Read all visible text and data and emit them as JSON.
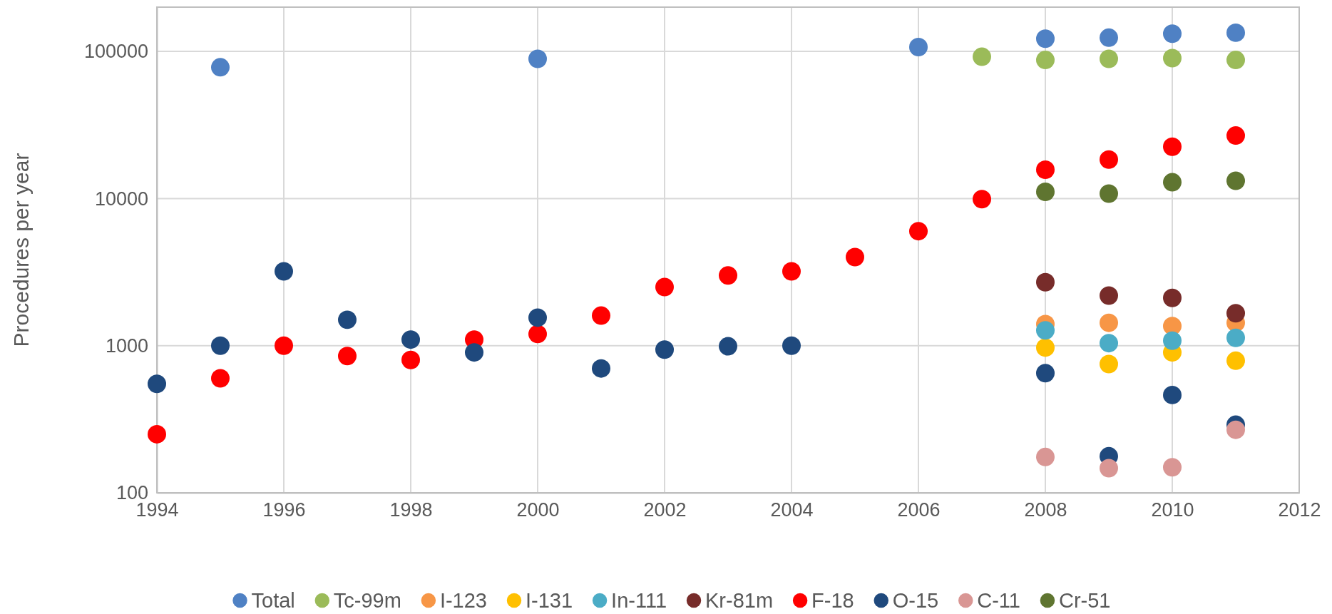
{
  "chart_data": {
    "type": "scatter",
    "ylabel": "Procedures per year",
    "log": "y",
    "grid": true,
    "legend": "bottom",
    "marker": "circle",
    "xlim": [
      1994,
      2012
    ],
    "xticks": [
      1994,
      1996,
      1998,
      2000,
      2002,
      2004,
      2006,
      2008,
      2010,
      2012
    ],
    "ylim": [
      100,
      200000
    ],
    "yticks": [
      100,
      1000,
      10000,
      100000
    ],
    "series": [
      {
        "name": "Total",
        "color": "#4f81c4",
        "x": [
          1995,
          2000,
          2006,
          2008,
          2009,
          2010,
          2011
        ],
        "values": [
          78000,
          89000,
          107000,
          122000,
          124000,
          132000,
          134000
        ]
      },
      {
        "name": "Tc-99m",
        "color": "#9bbb59",
        "x": [
          2007,
          2008,
          2009,
          2010,
          2011
        ],
        "values": [
          92000,
          87500,
          89000,
          90000,
          87500
        ]
      },
      {
        "name": "I-123",
        "color": "#f79646",
        "x": [
          2008,
          2009,
          2010,
          2011
        ],
        "values": [
          1400,
          1430,
          1360,
          1430
        ]
      },
      {
        "name": "I-131",
        "color": "#ffc000",
        "x": [
          2008,
          2009,
          2010,
          2011
        ],
        "values": [
          970,
          750,
          900,
          790
        ]
      },
      {
        "name": "In-111",
        "color": "#4bacc6",
        "x": [
          2008,
          2009,
          2010,
          2011
        ],
        "values": [
          1270,
          1040,
          1080,
          1130
        ]
      },
      {
        "name": "Kr-81m",
        "color": "#772c2a",
        "x": [
          2008,
          2009,
          2010,
          2011
        ],
        "values": [
          2700,
          2190,
          2110,
          1660
        ]
      },
      {
        "name": "F-18",
        "color": "#ff0000",
        "x": [
          1994,
          1995,
          1996,
          1997,
          1998,
          1999,
          2000,
          2001,
          2002,
          2003,
          2004,
          2005,
          2006,
          2007,
          2008,
          2009,
          2010,
          2011
        ],
        "values": [
          250,
          600,
          1000,
          850,
          800,
          1100,
          1200,
          1600,
          2500,
          3000,
          3200,
          4000,
          6000,
          9900,
          15700,
          18400,
          22500,
          26800
        ]
      },
      {
        "name": "O-15",
        "color": "#1f497d",
        "x": [
          1994,
          1995,
          1996,
          1997,
          1998,
          1999,
          2000,
          2001,
          2002,
          2003,
          2004,
          2008,
          2009,
          2010,
          2011
        ],
        "values": [
          550,
          1000,
          3200,
          1500,
          1100,
          900,
          1550,
          700,
          940,
          990,
          1000,
          650,
          177,
          462,
          290
        ]
      },
      {
        "name": "C-11",
        "color": "#d99694",
        "x": [
          2008,
          2009,
          2010,
          2011
        ],
        "values": [
          175,
          147,
          149,
          268
        ]
      },
      {
        "name": "Cr-51",
        "color": "#5f7530",
        "x": [
          2008,
          2009,
          2010,
          2011
        ],
        "values": [
          11100,
          10800,
          12900,
          13200
        ]
      }
    ]
  }
}
